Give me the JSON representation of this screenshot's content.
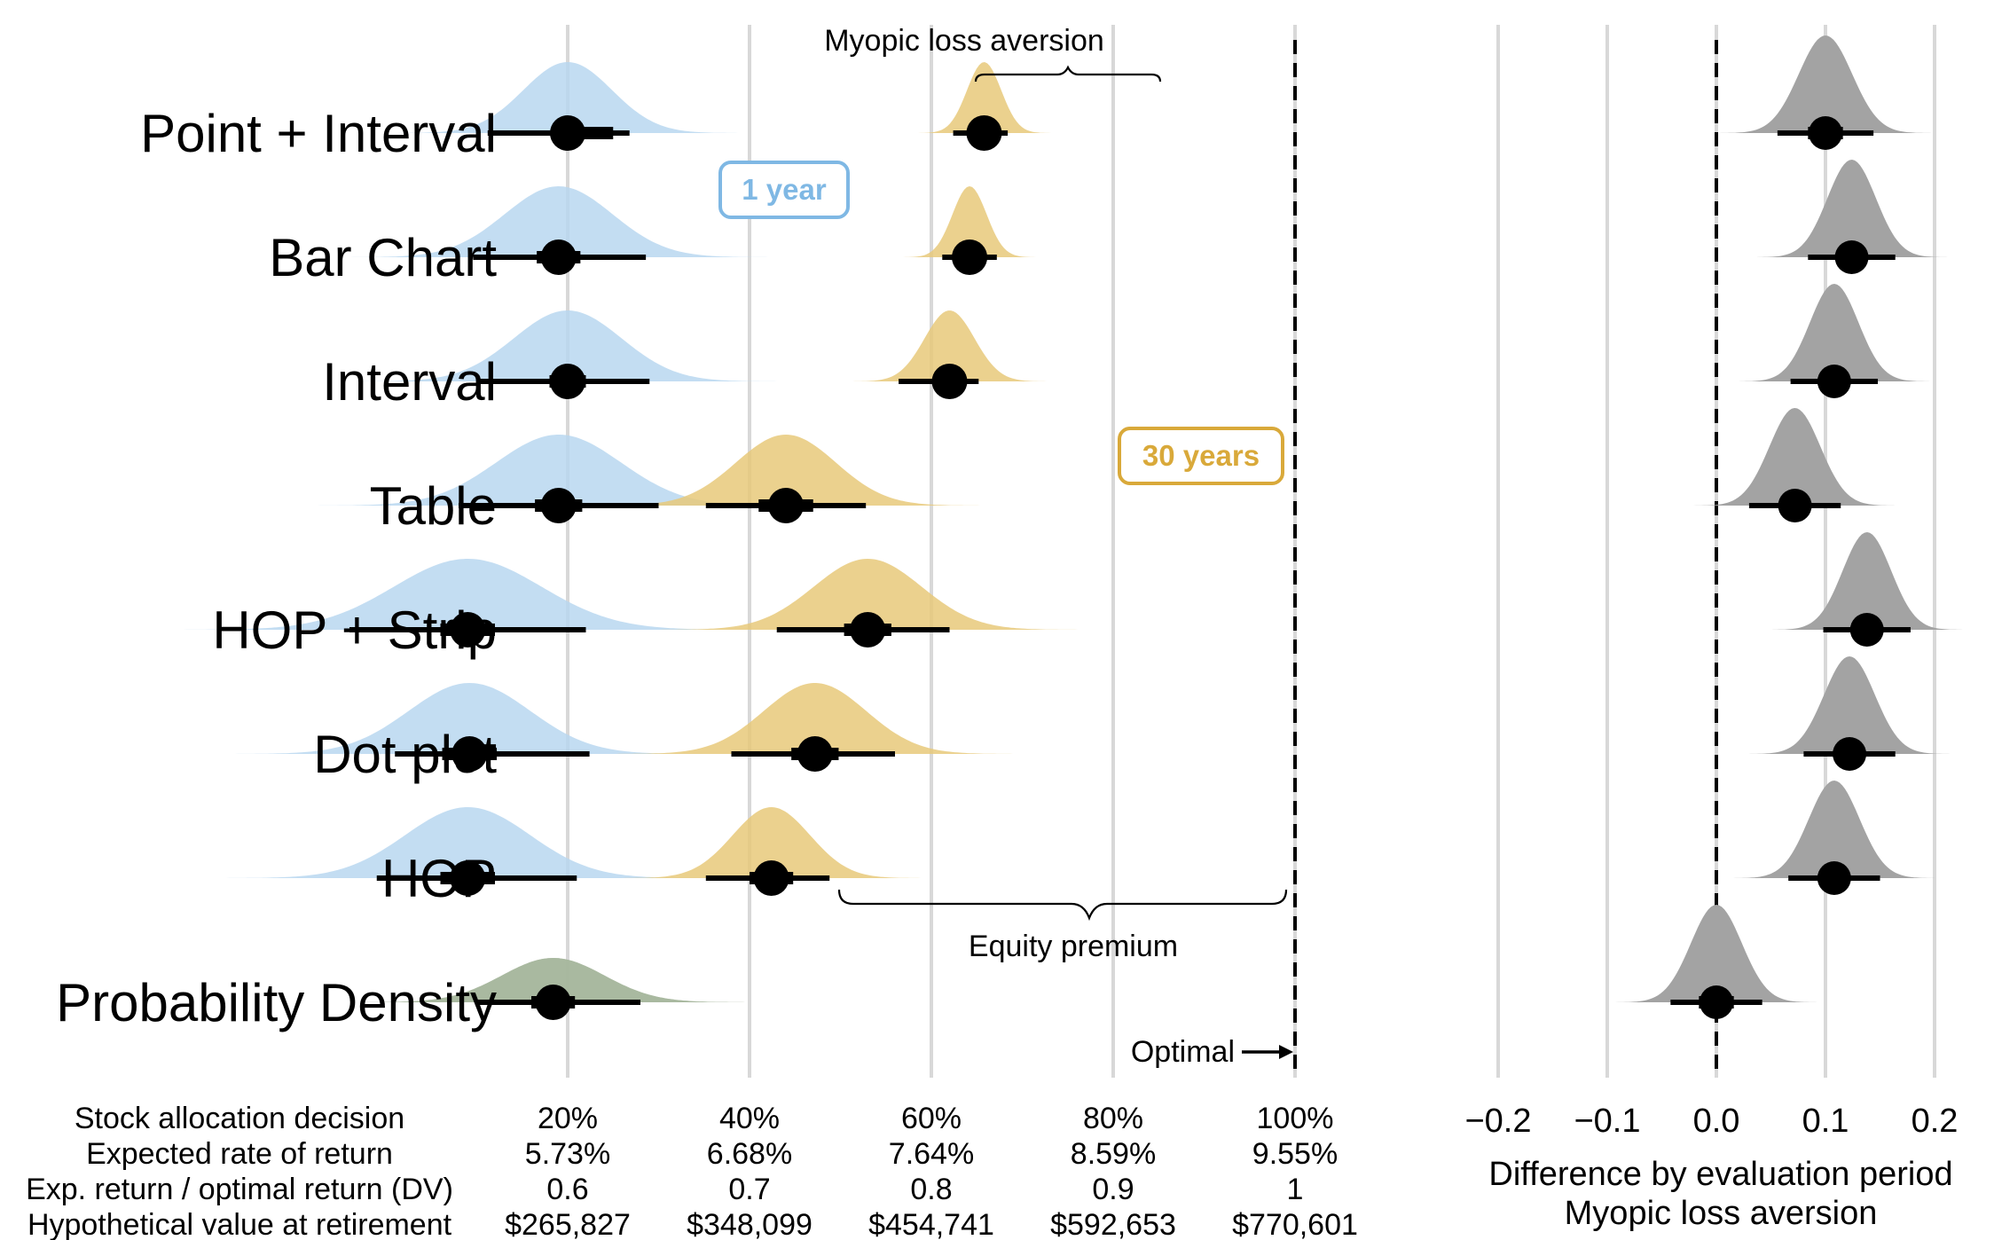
{
  "chart_data": [
    {
      "type": "distribution-interval",
      "rows": [
        {
          "label": "Point + Interval",
          "one_year": {
            "median": 0.6,
            "inner": [
              0.595,
              0.625
            ],
            "outer": [
              0.556,
              0.634
            ]
          },
          "thirty_years": {
            "median": 0.829,
            "inner": [
              0.822,
              0.836
            ],
            "outer": [
              0.812,
              0.842
            ]
          }
        },
        {
          "label": "Bar Chart",
          "one_year": {
            "median": 0.595,
            "inner": [
              0.583,
              0.607
            ],
            "outer": [
              0.548,
              0.643
            ]
          },
          "thirty_years": {
            "median": 0.821,
            "inner": [
              0.813,
              0.829
            ],
            "outer": [
              0.806,
              0.836
            ]
          }
        },
        {
          "label": "Interval",
          "one_year": {
            "median": 0.6,
            "inner": [
              0.59,
              0.61
            ],
            "outer": [
              0.55,
              0.645
            ]
          },
          "thirty_years": {
            "median": 0.81,
            "inner": [
              0.802,
              0.818
            ],
            "outer": [
              0.782,
              0.826
            ]
          }
        },
        {
          "label": "Table",
          "one_year": {
            "median": 0.595,
            "inner": [
              0.582,
              0.608
            ],
            "outer": [
              0.54,
              0.65
            ]
          },
          "thirty_years": {
            "median": 0.72,
            "inner": [
              0.705,
              0.735
            ],
            "outer": [
              0.676,
              0.764
            ]
          }
        },
        {
          "label": "HOP + Strip",
          "one_year": {
            "median": 0.545,
            "inner": [
              0.53,
              0.56
            ],
            "outer": [
              0.48,
              0.61
            ]
          },
          "thirty_years": {
            "median": 0.765,
            "inner": [
              0.752,
              0.778
            ],
            "outer": [
              0.715,
              0.81
            ]
          }
        },
        {
          "label": "Dot plot",
          "one_year": {
            "median": 0.546,
            "inner": [
              0.531,
              0.561
            ],
            "outer": [
              0.505,
              0.612
            ]
          },
          "thirty_years": {
            "median": 0.736,
            "inner": [
              0.723,
              0.749
            ],
            "outer": [
              0.69,
              0.78
            ]
          }
        },
        {
          "label": "HOP",
          "one_year": {
            "median": 0.545,
            "inner": [
              0.53,
              0.56
            ],
            "outer": [
              0.495,
              0.605
            ]
          },
          "thirty_years": {
            "median": 0.712,
            "inner": [
              0.7,
              0.724
            ],
            "outer": [
              0.676,
              0.744
            ]
          }
        },
        {
          "label": "Probability Density",
          "one_year": {
            "median": 0.592,
            "inner": [
              0.58,
              0.604
            ],
            "outer": [
              0.55,
              0.64
            ]
          },
          "thirty_years": {
            "median": 0.592,
            "inner": [
              0.58,
              0.604
            ],
            "outer": [
              0.55,
              0.64
            ]
          }
        }
      ],
      "x_axis": {
        "ticks": [
          0.6,
          0.7,
          0.8,
          0.9,
          1.0
        ],
        "rows": [
          {
            "name": "Stock allocation decision",
            "labels": [
              "20%",
              "40%",
              "60%",
              "80%",
              "100%"
            ]
          },
          {
            "name": "Expected rate of return",
            "labels": [
              "5.73%",
              "6.68%",
              "7.64%",
              "8.59%",
              "9.55%"
            ]
          },
          {
            "name": "Exp. return / optimal return (DV)",
            "labels": [
              "0.6",
              "0.7",
              "0.8",
              "0.9",
              "1"
            ]
          },
          {
            "name": "Hypothetical value at retirement",
            "labels": [
              "$265,827",
              "$348,099",
              "$454,741",
              "$592,653",
              "$770,601"
            ]
          }
        ]
      },
      "reference_line": 1.0,
      "annotations": {
        "myopic": "Myopic loss aversion",
        "one_year": "1 year",
        "thirty_years": "30 years",
        "equity": "Equity premium",
        "optimal": "Optimal"
      },
      "colors": {
        "one_year": "#b9d7f0",
        "thirty_years": "#e8c97a",
        "one_year_label": "#7fb8e4",
        "thirty_years_label": "#d9a93a",
        "overlap": "#a7b79e"
      },
      "grid": true
    },
    {
      "type": "distribution-interval",
      "rows": [
        {
          "median": 0.1,
          "inner": [
            0.084,
            0.116
          ],
          "outer": [
            0.056,
            0.144
          ]
        },
        {
          "median": 0.124,
          "inner": [
            0.11,
            0.138
          ],
          "outer": [
            0.084,
            0.164
          ]
        },
        {
          "median": 0.108,
          "inner": [
            0.094,
            0.122
          ],
          "outer": [
            0.068,
            0.148
          ]
        },
        {
          "median": 0.072,
          "inner": [
            0.058,
            0.086
          ],
          "outer": [
            0.03,
            0.114
          ]
        },
        {
          "median": 0.138,
          "inner": [
            0.124,
            0.152
          ],
          "outer": [
            0.098,
            0.178
          ]
        },
        {
          "median": 0.122,
          "inner": [
            0.108,
            0.136
          ],
          "outer": [
            0.08,
            0.164
          ]
        },
        {
          "median": 0.108,
          "inner": [
            0.094,
            0.122
          ],
          "outer": [
            0.066,
            0.15
          ]
        },
        {
          "median": 0.0,
          "inner": [
            -0.016,
            0.016
          ],
          "outer": [
            -0.042,
            0.042
          ]
        }
      ],
      "x_axis": {
        "ticks": [
          -0.2,
          -0.1,
          0.0,
          0.1,
          0.2
        ],
        "labels": [
          "−0.2",
          "−0.1",
          "0.0",
          "0.1",
          "0.2"
        ]
      },
      "xlabel": [
        "Difference by evaluation period",
        "Myopic loss aversion"
      ],
      "reference_line": 0.0,
      "colors": {
        "density": "#a3a3a3"
      },
      "grid": true
    }
  ]
}
